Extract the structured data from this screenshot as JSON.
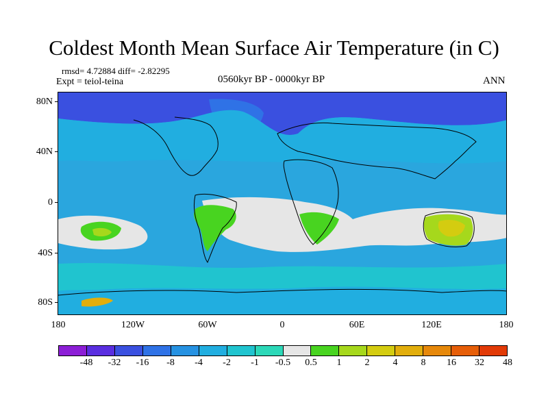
{
  "title": "Coldest Month Mean Surface Air Temperature (in C)",
  "stats": "rmsd= 4.72884 diff= -2.82295",
  "experiment": "Expt = teiol-teina",
  "period": "0560kyr BP - 0000kyr BP",
  "season": "ANN",
  "lat_labels": [
    "80N",
    "40N",
    "0",
    "40S",
    "80S"
  ],
  "lon_labels": [
    "180",
    "120W",
    "60W",
    "0",
    "60E",
    "120E",
    "180"
  ],
  "colorbar": {
    "labels": [
      "-48",
      "-32",
      "-16",
      "-8",
      "-4",
      "-2",
      "-1",
      "-0.5",
      "0.5",
      "1",
      "2",
      "4",
      "8",
      "16",
      "32",
      "48"
    ],
    "colors": [
      "#8c1ed6",
      "#5a2ee0",
      "#3a50e0",
      "#2f72e6",
      "#2692e2",
      "#21aee0",
      "#20c4cf",
      "#2cd8b8",
      "#e6e6e6",
      "#48d420",
      "#a6d81c",
      "#d4cc10",
      "#e2ae0c",
      "#e6880a",
      "#e65e08",
      "#e23a06"
    ]
  },
  "map_colors": {
    "ocean": "#2aa6de",
    "deep_cold": "#2f72e6",
    "very_cold": "#3a50e0",
    "mid": "#21aee0",
    "near_zero": "#20c4cf",
    "neutral": "#e6e6e6",
    "warm_low": "#48d420",
    "warm_mid": "#a6d81c",
    "warm_high": "#d4cc10",
    "hot": "#e2ae0c"
  }
}
